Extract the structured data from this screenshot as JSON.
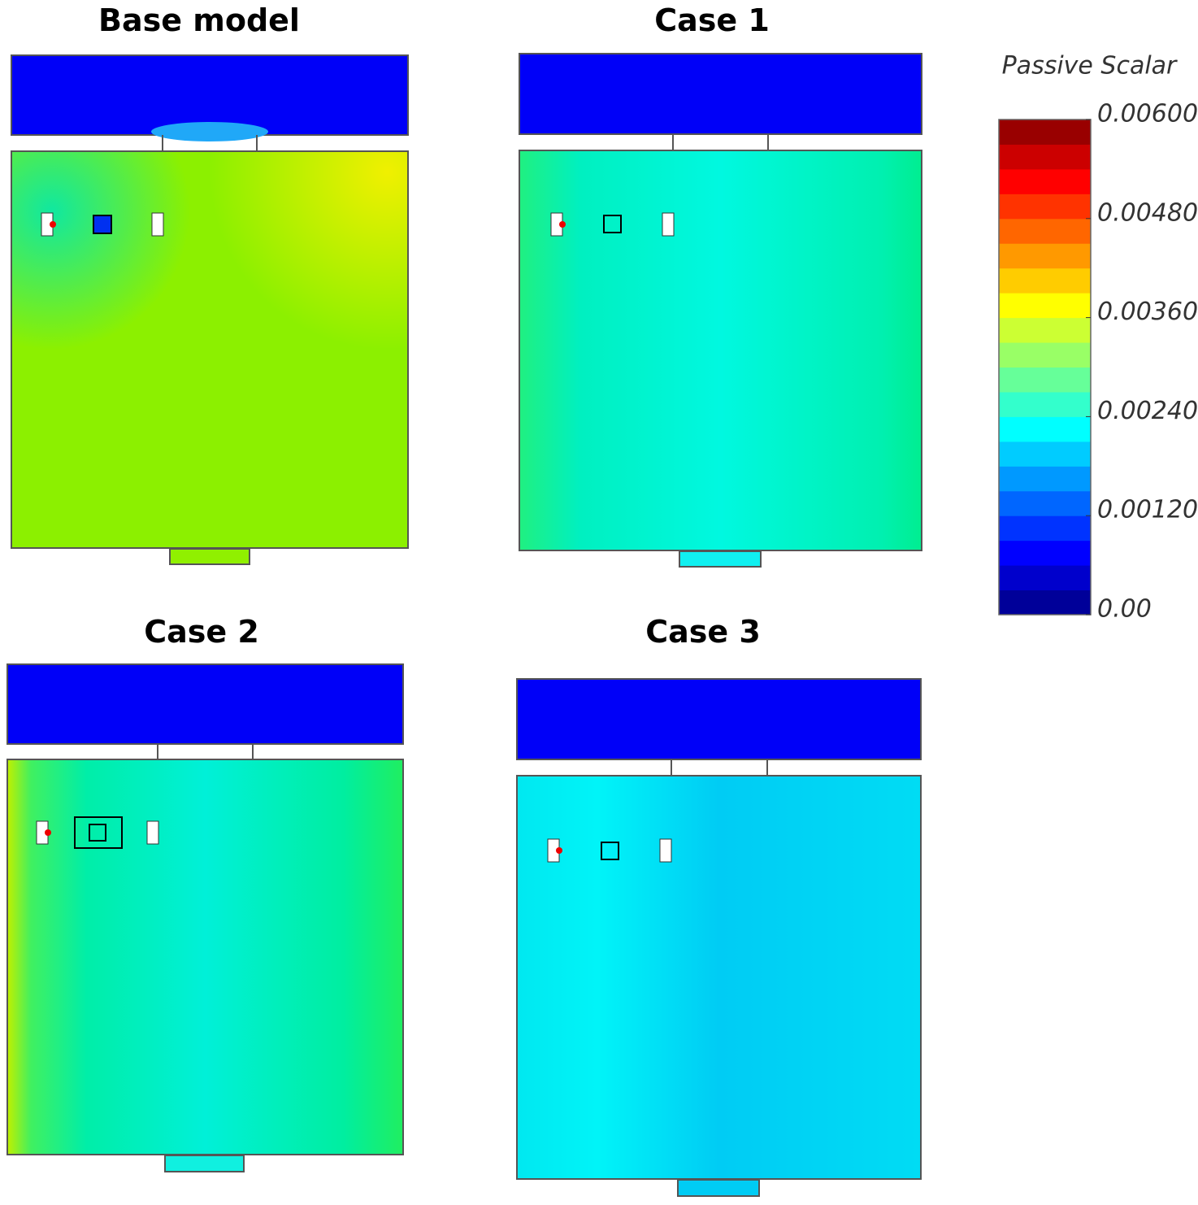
{
  "panels": [
    {
      "title": "Base model"
    },
    {
      "title": "Case 1"
    },
    {
      "title": "Case 2"
    },
    {
      "title": "Case 3"
    }
  ],
  "colorbar": {
    "title": "Passive Scalar",
    "range": [
      0,
      0.006
    ],
    "ticks": [
      {
        "value": 0.006,
        "label": "0.00600"
      },
      {
        "value": 0.0048,
        "label": "0.00480"
      },
      {
        "value": 0.0036,
        "label": "0.00360"
      },
      {
        "value": 0.0024,
        "label": "0.00240"
      },
      {
        "value": 0.0012,
        "label": "0.00120"
      },
      {
        "value": 0,
        "label": "0.00"
      }
    ]
  }
}
